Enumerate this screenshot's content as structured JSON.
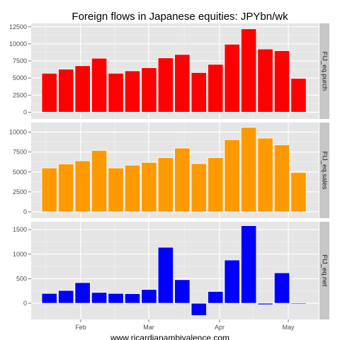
{
  "title": "Foreign flows in Japanese equities: JPYbn/wk",
  "caption": "www.ricardianambivalence.com",
  "chart_data": [
    {
      "type": "bar",
      "facet": "FIJ_eq.purch",
      "color": "#ff0000",
      "ylim": [
        -1000,
        13000
      ],
      "yticks": [
        0,
        2500,
        5000,
        7500,
        10000,
        12500
      ],
      "ytick_labels": [
        "0",
        "2500",
        "5000",
        "7500",
        "10000",
        "12500"
      ],
      "xtick_labels": [
        "Feb",
        "Mar",
        "Apr",
        "May"
      ],
      "values": [
        5700,
        6300,
        6800,
        7900,
        5700,
        6050,
        6500,
        7950,
        8450,
        5800,
        7000,
        9950,
        12200,
        9250,
        9000,
        4950
      ]
    },
    {
      "type": "bar",
      "facet": "FIJ_eq.sales",
      "color": "#ff9900",
      "ylim": [
        -800,
        11200
      ],
      "yticks": [
        0,
        2500,
        5000,
        7500,
        10000
      ],
      "ytick_labels": [
        "0",
        "2500",
        "5000",
        "7500",
        "10000"
      ],
      "xtick_labels": [
        "Feb",
        "Mar",
        "Apr",
        "May"
      ],
      "values": [
        5500,
        6000,
        6400,
        7700,
        5500,
        5850,
        6200,
        6800,
        8000,
        6050,
        6800,
        9050,
        10600,
        9250,
        8400,
        4950
      ]
    },
    {
      "type": "bar",
      "facet": "FIJ_eq.net",
      "color": "#0000ff",
      "ylim": [
        -330,
        1660
      ],
      "yticks": [
        0,
        500,
        1000,
        1500
      ],
      "ytick_labels": [
        "0",
        "500",
        "1000",
        "1500"
      ],
      "xtick_labels": [
        "Feb",
        "Mar",
        "Apr",
        "May"
      ],
      "values": [
        200,
        260,
        420,
        220,
        200,
        195,
        280,
        1140,
        480,
        -250,
        240,
        880,
        1580,
        -30,
        620,
        -20
      ]
    }
  ]
}
